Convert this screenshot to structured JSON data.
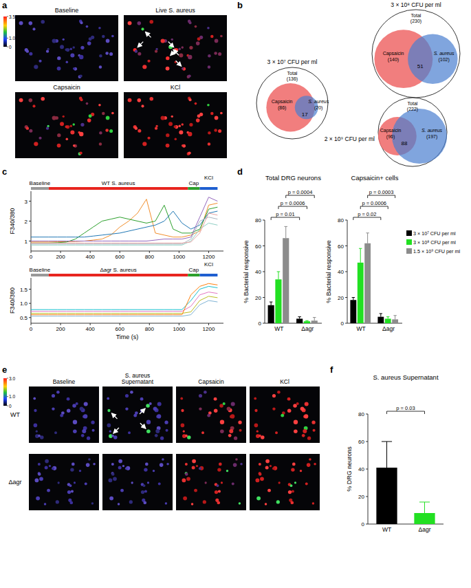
{
  "panel_labels": [
    "a",
    "b",
    "c",
    "d",
    "e",
    "f"
  ],
  "panel_a": {
    "colorbar": {
      "range": [
        0,
        3.5
      ],
      "ticks": [
        0,
        {
          "value": 1,
          "label": "1.0"
        },
        3.5
      ]
    },
    "images": [
      "Baseline",
      "Live S. aureus",
      "Capsaicin",
      "KCl"
    ]
  },
  "panel_b": {
    "diagrams": [
      {
        "title": "3 × 10⁷ CFU per ml",
        "total": {
          "label": "Total",
          "count": 136,
          "count_label": "(136)"
        },
        "capsaicin": {
          "label": "Capsaicin",
          "count": 86,
          "count_label": "(86)"
        },
        "s_aureus": {
          "label": "S. aureus",
          "count": 20,
          "count_label": "(20)"
        },
        "overlap": 17
      },
      {
        "title": "3 × 10⁸ CFU per ml",
        "total": {
          "label": "Total",
          "count": 230,
          "count_label": "(230)"
        },
        "capsaicin": {
          "label": "Capsaicin",
          "count": 140,
          "count_label": "(140)"
        },
        "s_aureus": {
          "label": "S. aureus",
          "count": 102,
          "count_label": "(102)"
        },
        "overlap": 51
      },
      {
        "title": "2 × 10⁹ CFU per ml",
        "total": {
          "label": "Total",
          "count": 222,
          "count_label": "(222)"
        },
        "capsaicin": {
          "label": "Capsaicin",
          "count": 96,
          "count_label": "(96)"
        },
        "s_aureus": {
          "label": "S. aureus",
          "count": 197,
          "count_label": "(197)"
        },
        "overlap": 88
      }
    ]
  },
  "panel_e": {
    "colorbar": {
      "range": [
        0,
        3
      ],
      "ticks": [
        0,
        {
          "value": 1,
          "label": "1.0"
        },
        {
          "value": 3,
          "label": "3.0"
        }
      ]
    },
    "columns": [
      [
        "Baseline"
      ],
      [
        "S. aureus",
        "Supernatant"
      ],
      [
        "Capsaicin"
      ],
      [
        "KCl"
      ]
    ],
    "rows": [
      "WT",
      "Δagr"
    ]
  },
  "chart_data": [
    {
      "type": "line",
      "y_label": "F340/380",
      "x": [
        0,
        60,
        120,
        180,
        240,
        300,
        360,
        420,
        480,
        540,
        600,
        660,
        720,
        780,
        840,
        900,
        960,
        1020,
        1080,
        1140,
        1200,
        1260
      ],
      "xlim": [
        0,
        1300
      ],
      "xticks": [
        0,
        200,
        400,
        600,
        800,
        1000,
        1200
      ],
      "ylim": [
        0.5,
        3.5
      ],
      "yticks": [
        1,
        2,
        3
      ],
      "segments": [
        {
          "label": "Baseline",
          "start": 0,
          "end": 120,
          "color": "#999999"
        },
        {
          "label": "WT S. aureus",
          "start": 120,
          "end": 1060,
          "color": "#e8251f"
        },
        {
          "label": "Cap",
          "start": 1060,
          "end": 1140,
          "color": "#2ca02c"
        },
        {
          "label": "KCl",
          "start": 1140,
          "end": 1260,
          "color": "#1f5fd0"
        }
      ],
      "series": [
        {
          "color": "#f28e2b",
          "values": [
            0.95,
            0.95,
            0.95,
            0.96,
            0.97,
            0.98,
            1.0,
            1.05,
            1.1,
            1.3,
            1.7,
            2.0,
            2.4,
            3.1,
            1.4,
            1.3,
            1.2,
            1.2,
            1.3,
            1.5,
            2.8,
            2.9
          ]
        },
        {
          "color": "#2ca02c",
          "values": [
            0.9,
            0.9,
            0.9,
            0.92,
            0.95,
            1.1,
            1.4,
            1.7,
            2.0,
            2.1,
            2.2,
            2.1,
            2.0,
            1.9,
            2.0,
            2.8,
            1.6,
            1.4,
            1.4,
            1.6,
            2.6,
            2.7
          ]
        },
        {
          "color": "#1f77b4",
          "values": [
            1.2,
            1.2,
            1.2,
            1.2,
            1.2,
            1.2,
            1.2,
            1.25,
            1.3,
            1.35,
            1.4,
            1.5,
            1.6,
            1.7,
            1.8,
            2.0,
            2.5,
            1.9,
            1.6,
            1.8,
            2.4,
            2.5
          ]
        },
        {
          "color": "#9467bd",
          "values": [
            1.0,
            1.0,
            1.0,
            1.0,
            1.0,
            1.0,
            1.0,
            1.0,
            1.0,
            1.0,
            1.0,
            1.0,
            1.0,
            1.0,
            1.05,
            1.1,
            1.1,
            1.1,
            1.2,
            2.2,
            3.2,
            3.0
          ]
        },
        {
          "color": "#aab4c0",
          "values": [
            0.85,
            0.85,
            0.85,
            0.85,
            0.85,
            0.85,
            0.85,
            0.85,
            0.85,
            0.85,
            0.85,
            0.85,
            0.85,
            0.85,
            0.85,
            0.85,
            0.85,
            0.85,
            1.1,
            2.0,
            2.2,
            2.1
          ]
        },
        {
          "color": "#8fcfc4",
          "values": [
            0.8,
            0.8,
            0.8,
            0.8,
            0.8,
            0.8,
            0.8,
            0.8,
            0.8,
            0.8,
            0.8,
            0.8,
            0.8,
            0.8,
            0.8,
            0.8,
            0.8,
            0.8,
            1.0,
            1.6,
            1.9,
            1.8
          ]
        },
        {
          "color": "#e7a3a3",
          "values": [
            0.9,
            0.9,
            0.9,
            0.9,
            0.9,
            0.9,
            0.9,
            0.9,
            0.9,
            0.9,
            0.9,
            0.9,
            0.9,
            0.9,
            0.9,
            0.9,
            0.9,
            0.9,
            0.95,
            1.4,
            2.4,
            2.3
          ]
        }
      ]
    },
    {
      "type": "line",
      "y_label": "F340/380",
      "x_label": "Time (s)",
      "x": [
        0,
        60,
        120,
        180,
        240,
        300,
        360,
        420,
        480,
        540,
        600,
        660,
        720,
        780,
        840,
        900,
        960,
        1020,
        1080,
        1140,
        1200,
        1260
      ],
      "xlim": [
        0,
        1300
      ],
      "xticks": [
        0,
        200,
        400,
        600,
        800,
        1000,
        1200
      ],
      "ylim": [
        0.3,
        1.9
      ],
      "yticks": [
        0.5,
        {
          "value": 1,
          "label": "1.0"
        },
        1.5
      ],
      "segments": [
        {
          "label": "Baseline",
          "start": 0,
          "end": 120,
          "color": "#999999"
        },
        {
          "label": "Δagr S. aureus",
          "start": 120,
          "end": 1060,
          "color": "#e8251f"
        },
        {
          "label": "Cap",
          "start": 1060,
          "end": 1140,
          "color": "#2ca02c"
        },
        {
          "label": "KCl",
          "start": 1140,
          "end": 1260,
          "color": "#1f5fd0"
        }
      ],
      "series": [
        {
          "color": "#17becf",
          "values": [
            0.78,
            0.78,
            0.78,
            0.78,
            0.78,
            0.78,
            0.78,
            0.78,
            0.78,
            0.78,
            0.78,
            0.78,
            0.78,
            0.78,
            0.78,
            0.78,
            0.78,
            0.78,
            1.1,
            1.5,
            1.6,
            1.55
          ]
        },
        {
          "color": "#e377c2",
          "values": [
            0.72,
            0.72,
            0.72,
            0.72,
            0.72,
            0.72,
            0.72,
            0.72,
            0.72,
            0.72,
            0.72,
            0.72,
            0.72,
            0.72,
            0.72,
            0.72,
            0.72,
            0.72,
            0.9,
            1.3,
            1.4,
            1.35
          ]
        },
        {
          "color": "#bcbd22",
          "values": [
            0.65,
            0.65,
            0.65,
            0.65,
            0.65,
            0.65,
            0.65,
            0.65,
            0.65,
            0.65,
            0.65,
            0.65,
            0.65,
            0.65,
            0.65,
            0.65,
            0.65,
            0.65,
            0.7,
            1.1,
            1.25,
            1.2
          ]
        },
        {
          "color": "#ff7f0e",
          "values": [
            0.6,
            0.6,
            0.6,
            0.6,
            0.6,
            0.6,
            0.6,
            0.6,
            0.6,
            0.6,
            0.6,
            0.6,
            0.6,
            0.6,
            0.6,
            0.6,
            0.6,
            0.6,
            1.3,
            1.6,
            1.7,
            1.65
          ]
        },
        {
          "color": "#7fb3d5",
          "values": [
            0.55,
            0.55,
            0.55,
            0.55,
            0.55,
            0.55,
            0.55,
            0.55,
            0.55,
            0.55,
            0.55,
            0.55,
            0.55,
            0.55,
            0.55,
            0.55,
            0.55,
            0.55,
            0.6,
            0.95,
            1.1,
            1.05
          ]
        }
      ]
    },
    {
      "type": "bar",
      "title": "Total DRG neurons",
      "categories": [
        "WT",
        "Δagr"
      ],
      "series": [
        {
          "color": "#000000",
          "values": [
            14,
            3.5
          ],
          "errors": [
            2.5,
            1.5
          ]
        },
        {
          "color": "#22e022",
          "values": [
            34,
            1.5
          ],
          "errors": [
            6,
            0.5
          ]
        },
        {
          "color": "#8c8c8c",
          "values": [
            66,
            2
          ],
          "errors": [
            9,
            2.5
          ]
        }
      ],
      "ylim": [
        0,
        80
      ],
      "yticks": [
        0,
        20,
        40,
        60,
        80
      ],
      "y_label": "% Bacterial responsive",
      "comparisons": [
        {
          "label": "p = 0.01",
          "series": 0
        },
        {
          "label": "p = 0.0006",
          "series": 1
        },
        {
          "label": "p = 0.0004",
          "series": 2
        }
      ]
    },
    {
      "type": "bar",
      "title": "Capsaicin+ cells",
      "categories": [
        "WT",
        "Δagr"
      ],
      "series": [
        {
          "name": "3 × 10⁷ CFU per ml",
          "color": "#000000",
          "values": [
            18,
            5
          ],
          "errors": [
            2,
            2.5
          ]
        },
        {
          "name": "3 × 10⁸ CFU per ml",
          "color": "#22e022",
          "values": [
            47,
            3.5
          ],
          "errors": [
            11,
            1.5
          ]
        },
        {
          "name": "1.5 × 10⁹ CFU per ml",
          "color": "#8c8c8c",
          "values": [
            62,
            3
          ],
          "errors": [
            8,
            3
          ]
        }
      ],
      "ylim": [
        0,
        80
      ],
      "yticks": [
        0,
        20,
        40,
        60,
        80
      ],
      "y_label": "% Bacterial responsive",
      "legend": "right",
      "comparisons": [
        {
          "label": "p = 0.02",
          "series": 0
        },
        {
          "label": "p = 0.0006",
          "series": 1
        },
        {
          "label": "p = 0.0003",
          "series": 2
        }
      ]
    },
    {
      "type": "bar",
      "title": "S. aureus Supernatant",
      "categories": [
        "WT",
        "Δagr"
      ],
      "values": [
        41,
        8
      ],
      "errors": [
        19,
        8
      ],
      "colors": [
        "#000000",
        "#22e022"
      ],
      "ylim": [
        0,
        80
      ],
      "yticks": [
        0,
        20,
        40,
        60,
        80
      ],
      "y_label": "% DRG neurons",
      "comparisons": [
        {
          "label": "p = 0.03",
          "between": [
            0,
            1
          ]
        }
      ]
    }
  ]
}
